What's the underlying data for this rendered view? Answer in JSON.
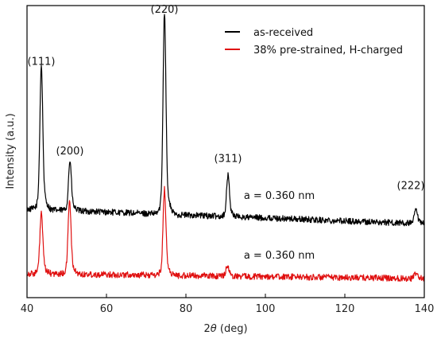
{
  "chart_data": {
    "type": "line",
    "xlabel_prefix": "2",
    "xlabel_symbol": "θ",
    "xlabel_suffix": " (deg)",
    "ylabel": "Intensity (a.u.)",
    "xlim": [
      40,
      140
    ],
    "xticks": [
      "40",
      "60",
      "80",
      "100",
      "120",
      "140"
    ],
    "yticks_shown": false,
    "legend_position": "top-right",
    "series": [
      {
        "name": "as-received",
        "color": "#000000",
        "baseline": 0.28,
        "baseline_end": 0.22,
        "peaks": [
          {
            "x": 43.6,
            "h": 0.52
          },
          {
            "x": 50.8,
            "h": 0.18
          },
          {
            "x": 74.6,
            "h": 0.73
          },
          {
            "x": 90.6,
            "h": 0.15
          },
          {
            "x": 137.9,
            "h": 0.05
          }
        ]
      },
      {
        "name": "38% pre-strained, H-charged",
        "color": "#e01010",
        "baseline": 0.02,
        "baseline_end": 0.0,
        "peaks": [
          {
            "x": 43.6,
            "h": 0.22
          },
          {
            "x": 50.7,
            "h": 0.27
          },
          {
            "x": 74.6,
            "h": 0.31
          },
          {
            "x": 90.4,
            "h": 0.04
          },
          {
            "x": 137.9,
            "h": 0.02
          }
        ]
      }
    ],
    "annotations": [
      {
        "text": "(111)",
        "x": 43.6,
        "y": 0.86
      },
      {
        "text": "(200)",
        "x": 50.8,
        "y": 0.5
      },
      {
        "text": "(220)",
        "x": 74.6,
        "y": 1.07
      },
      {
        "text": "(311)",
        "x": 90.6,
        "y": 0.47
      },
      {
        "text": "(222)",
        "x": 136.6,
        "y": 0.36
      },
      {
        "text": "a = 0.360 nm",
        "x": 103.5,
        "y": 0.32
      },
      {
        "text": "a = 0.360 nm",
        "x": 103.5,
        "y": 0.08
      }
    ]
  }
}
